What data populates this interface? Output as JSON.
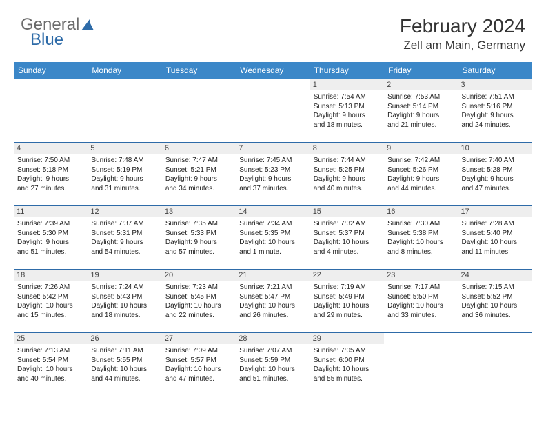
{
  "header": {
    "logo_general": "General",
    "logo_blue": "Blue",
    "month_title": "February 2024",
    "location": "Zell am Main, Germany"
  },
  "colors": {
    "header_bar": "#3b87c8",
    "border": "#2e6ba8",
    "daynum_bg": "#eeeeee",
    "text": "#222222",
    "logo_gray": "#6b6b6b",
    "logo_blue": "#2e6ba8"
  },
  "weekdays": [
    "Sunday",
    "Monday",
    "Tuesday",
    "Wednesday",
    "Thursday",
    "Friday",
    "Saturday"
  ],
  "weeks": [
    [
      null,
      null,
      null,
      null,
      {
        "n": "1",
        "sr": "Sunrise: 7:54 AM",
        "ss": "Sunset: 5:13 PM",
        "d1": "Daylight: 9 hours",
        "d2": "and 18 minutes."
      },
      {
        "n": "2",
        "sr": "Sunrise: 7:53 AM",
        "ss": "Sunset: 5:14 PM",
        "d1": "Daylight: 9 hours",
        "d2": "and 21 minutes."
      },
      {
        "n": "3",
        "sr": "Sunrise: 7:51 AM",
        "ss": "Sunset: 5:16 PM",
        "d1": "Daylight: 9 hours",
        "d2": "and 24 minutes."
      }
    ],
    [
      {
        "n": "4",
        "sr": "Sunrise: 7:50 AM",
        "ss": "Sunset: 5:18 PM",
        "d1": "Daylight: 9 hours",
        "d2": "and 27 minutes."
      },
      {
        "n": "5",
        "sr": "Sunrise: 7:48 AM",
        "ss": "Sunset: 5:19 PM",
        "d1": "Daylight: 9 hours",
        "d2": "and 31 minutes."
      },
      {
        "n": "6",
        "sr": "Sunrise: 7:47 AM",
        "ss": "Sunset: 5:21 PM",
        "d1": "Daylight: 9 hours",
        "d2": "and 34 minutes."
      },
      {
        "n": "7",
        "sr": "Sunrise: 7:45 AM",
        "ss": "Sunset: 5:23 PM",
        "d1": "Daylight: 9 hours",
        "d2": "and 37 minutes."
      },
      {
        "n": "8",
        "sr": "Sunrise: 7:44 AM",
        "ss": "Sunset: 5:25 PM",
        "d1": "Daylight: 9 hours",
        "d2": "and 40 minutes."
      },
      {
        "n": "9",
        "sr": "Sunrise: 7:42 AM",
        "ss": "Sunset: 5:26 PM",
        "d1": "Daylight: 9 hours",
        "d2": "and 44 minutes."
      },
      {
        "n": "10",
        "sr": "Sunrise: 7:40 AM",
        "ss": "Sunset: 5:28 PM",
        "d1": "Daylight: 9 hours",
        "d2": "and 47 minutes."
      }
    ],
    [
      {
        "n": "11",
        "sr": "Sunrise: 7:39 AM",
        "ss": "Sunset: 5:30 PM",
        "d1": "Daylight: 9 hours",
        "d2": "and 51 minutes."
      },
      {
        "n": "12",
        "sr": "Sunrise: 7:37 AM",
        "ss": "Sunset: 5:31 PM",
        "d1": "Daylight: 9 hours",
        "d2": "and 54 minutes."
      },
      {
        "n": "13",
        "sr": "Sunrise: 7:35 AM",
        "ss": "Sunset: 5:33 PM",
        "d1": "Daylight: 9 hours",
        "d2": "and 57 minutes."
      },
      {
        "n": "14",
        "sr": "Sunrise: 7:34 AM",
        "ss": "Sunset: 5:35 PM",
        "d1": "Daylight: 10 hours",
        "d2": "and 1 minute."
      },
      {
        "n": "15",
        "sr": "Sunrise: 7:32 AM",
        "ss": "Sunset: 5:37 PM",
        "d1": "Daylight: 10 hours",
        "d2": "and 4 minutes."
      },
      {
        "n": "16",
        "sr": "Sunrise: 7:30 AM",
        "ss": "Sunset: 5:38 PM",
        "d1": "Daylight: 10 hours",
        "d2": "and 8 minutes."
      },
      {
        "n": "17",
        "sr": "Sunrise: 7:28 AM",
        "ss": "Sunset: 5:40 PM",
        "d1": "Daylight: 10 hours",
        "d2": "and 11 minutes."
      }
    ],
    [
      {
        "n": "18",
        "sr": "Sunrise: 7:26 AM",
        "ss": "Sunset: 5:42 PM",
        "d1": "Daylight: 10 hours",
        "d2": "and 15 minutes."
      },
      {
        "n": "19",
        "sr": "Sunrise: 7:24 AM",
        "ss": "Sunset: 5:43 PM",
        "d1": "Daylight: 10 hours",
        "d2": "and 18 minutes."
      },
      {
        "n": "20",
        "sr": "Sunrise: 7:23 AM",
        "ss": "Sunset: 5:45 PM",
        "d1": "Daylight: 10 hours",
        "d2": "and 22 minutes."
      },
      {
        "n": "21",
        "sr": "Sunrise: 7:21 AM",
        "ss": "Sunset: 5:47 PM",
        "d1": "Daylight: 10 hours",
        "d2": "and 26 minutes."
      },
      {
        "n": "22",
        "sr": "Sunrise: 7:19 AM",
        "ss": "Sunset: 5:49 PM",
        "d1": "Daylight: 10 hours",
        "d2": "and 29 minutes."
      },
      {
        "n": "23",
        "sr": "Sunrise: 7:17 AM",
        "ss": "Sunset: 5:50 PM",
        "d1": "Daylight: 10 hours",
        "d2": "and 33 minutes."
      },
      {
        "n": "24",
        "sr": "Sunrise: 7:15 AM",
        "ss": "Sunset: 5:52 PM",
        "d1": "Daylight: 10 hours",
        "d2": "and 36 minutes."
      }
    ],
    [
      {
        "n": "25",
        "sr": "Sunrise: 7:13 AM",
        "ss": "Sunset: 5:54 PM",
        "d1": "Daylight: 10 hours",
        "d2": "and 40 minutes."
      },
      {
        "n": "26",
        "sr": "Sunrise: 7:11 AM",
        "ss": "Sunset: 5:55 PM",
        "d1": "Daylight: 10 hours",
        "d2": "and 44 minutes."
      },
      {
        "n": "27",
        "sr": "Sunrise: 7:09 AM",
        "ss": "Sunset: 5:57 PM",
        "d1": "Daylight: 10 hours",
        "d2": "and 47 minutes."
      },
      {
        "n": "28",
        "sr": "Sunrise: 7:07 AM",
        "ss": "Sunset: 5:59 PM",
        "d1": "Daylight: 10 hours",
        "d2": "and 51 minutes."
      },
      {
        "n": "29",
        "sr": "Sunrise: 7:05 AM",
        "ss": "Sunset: 6:00 PM",
        "d1": "Daylight: 10 hours",
        "d2": "and 55 minutes."
      },
      null,
      null
    ]
  ]
}
